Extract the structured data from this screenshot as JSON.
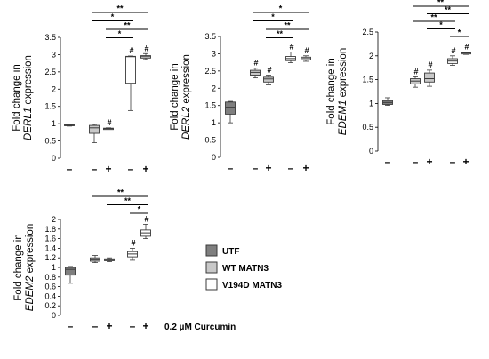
{
  "colors": {
    "utf": "#7f7f7f",
    "wt": "#c8c8c8",
    "v194d": "#ffffff",
    "stroke": "#3a3a3a"
  },
  "legend": [
    {
      "label": "UTF",
      "color": "#7f7f7f"
    },
    {
      "label": "WT MATN3",
      "color": "#c8c8c8"
    },
    {
      "label": "V194D MATN3",
      "color": "#ffffff"
    }
  ],
  "treatment_label": "0.2 µM Curcumin",
  "chart_data": [
    {
      "type": "box",
      "ylabel_prefix": "Fold change in",
      "ylabel_gene": "DERL1",
      "ylabel_suffix": " expression",
      "ylim": [
        0,
        3.5
      ],
      "yticks": [
        "0",
        "0.5",
        "1",
        "1.5",
        "2",
        "2.5",
        "3",
        "3.5"
      ],
      "ytick_values": [
        0,
        0.5,
        1,
        1.5,
        2,
        2.5,
        3,
        3.5
      ],
      "treatment_marks": [
        "–",
        "–",
        "+",
        "–",
        "+"
      ],
      "boxes": [
        {
          "group": "UTF",
          "curcumin": "–",
          "min": 0.93,
          "q1": 0.94,
          "median": 0.96,
          "q3": 0.98,
          "max": 0.99,
          "hash": ""
        },
        {
          "group": "WT MATN3",
          "curcumin": "–",
          "min": 0.45,
          "q1": 0.72,
          "median": 0.88,
          "q3": 0.95,
          "max": 0.98,
          "hash": ""
        },
        {
          "group": "WT MATN3",
          "curcumin": "+",
          "min": 0.84,
          "q1": 0.85,
          "median": 0.86,
          "q3": 0.87,
          "max": 0.88,
          "hash": "#"
        },
        {
          "group": "V194D MATN3",
          "curcumin": "–",
          "min": 1.38,
          "q1": 2.17,
          "median": 2.94,
          "q3": 2.95,
          "max": 2.96,
          "hash": "#"
        },
        {
          "group": "V194D MATN3",
          "curcumin": "+",
          "min": 2.86,
          "q1": 2.9,
          "median": 2.94,
          "q3": 2.97,
          "max": 3.03,
          "hash": "#"
        }
      ],
      "brackets": [
        {
          "from": 1,
          "to": 4,
          "label": "**"
        },
        {
          "from": 1,
          "to": 3,
          "label": "*"
        },
        {
          "from": 2,
          "to": 4,
          "label": "**"
        },
        {
          "from": 2,
          "to": 3,
          "label": "*"
        }
      ]
    },
    {
      "type": "box",
      "ylabel_prefix": "Fold change in",
      "ylabel_gene": "DERL2",
      "ylabel_suffix": " expression",
      "ylim": [
        0,
        3.5
      ],
      "yticks": [
        "0",
        "0.5",
        "1",
        "1.5",
        "2",
        "2.5",
        "3",
        "3.5"
      ],
      "ytick_values": [
        0,
        0.5,
        1,
        1.5,
        2,
        2.5,
        3,
        3.5
      ],
      "treatment_marks": [
        "–",
        "–",
        "+",
        "–",
        "+"
      ],
      "boxes": [
        {
          "group": "UTF",
          "curcumin": "–",
          "min": 1.0,
          "q1": 1.25,
          "median": 1.45,
          "q3": 1.6,
          "max": 1.62,
          "hash": ""
        },
        {
          "group": "WT MATN3",
          "curcumin": "–",
          "min": 2.3,
          "q1": 2.38,
          "median": 2.46,
          "q3": 2.52,
          "max": 2.58,
          "hash": "#"
        },
        {
          "group": "WT MATN3",
          "curcumin": "+",
          "min": 2.1,
          "q1": 2.18,
          "median": 2.27,
          "q3": 2.32,
          "max": 2.38,
          "hash": "#"
        },
        {
          "group": "V194D MATN3",
          "curcumin": "–",
          "min": 2.74,
          "q1": 2.8,
          "median": 2.86,
          "q3": 2.92,
          "max": 3.05,
          "hash": "#"
        },
        {
          "group": "V194D MATN3",
          "curcumin": "+",
          "min": 2.78,
          "q1": 2.82,
          "median": 2.86,
          "q3": 2.9,
          "max": 2.94,
          "hash": "#"
        }
      ],
      "brackets": [
        {
          "from": 1,
          "to": 4,
          "label": "*"
        },
        {
          "from": 1,
          "to": 3,
          "label": "*"
        },
        {
          "from": 2,
          "to": 4,
          "label": "**"
        },
        {
          "from": 2,
          "to": 3,
          "label": "**"
        }
      ]
    },
    {
      "type": "box",
      "ylabel_prefix": "Fold change in",
      "ylabel_gene": "EDEM1",
      "ylabel_suffix": " expression",
      "ylim": [
        0,
        2.5
      ],
      "yticks": [
        "0",
        "0.5",
        "1",
        "1.5",
        "2",
        "2.5"
      ],
      "ytick_values": [
        0,
        0.5,
        1,
        1.5,
        2,
        2.5
      ],
      "treatment_marks": [
        "–",
        "–",
        "+",
        "–",
        "+"
      ],
      "boxes": [
        {
          "group": "UTF",
          "curcumin": "–",
          "min": 0.96,
          "q1": 0.98,
          "median": 1.02,
          "q3": 1.06,
          "max": 1.12,
          "hash": ""
        },
        {
          "group": "WT MATN3",
          "curcumin": "–",
          "min": 1.34,
          "q1": 1.41,
          "median": 1.47,
          "q3": 1.52,
          "max": 1.56,
          "hash": "#"
        },
        {
          "group": "WT MATN3",
          "curcumin": "+",
          "min": 1.36,
          "q1": 1.45,
          "median": 1.52,
          "q3": 1.64,
          "max": 1.7,
          "hash": "#"
        },
        {
          "group": "V194D MATN3",
          "curcumin": "–",
          "min": 1.8,
          "q1": 1.84,
          "median": 1.89,
          "q3": 1.94,
          "max": 2.0,
          "hash": "#"
        },
        {
          "group": "V194D MATN3",
          "curcumin": "+",
          "min": 2.03,
          "q1": 2.04,
          "median": 2.06,
          "q3": 2.07,
          "max": 2.08,
          "hash": "#"
        }
      ],
      "brackets": [
        {
          "from": 1,
          "to": 4,
          "label": "**"
        },
        {
          "from": 2,
          "to": 4,
          "label": "**"
        },
        {
          "from": 1,
          "to": 3,
          "label": "**"
        },
        {
          "from": 2,
          "to": 3,
          "label": "*"
        },
        {
          "from": 3,
          "to": 4,
          "label": "*"
        }
      ]
    },
    {
      "type": "box",
      "ylabel_prefix": "Fold change in",
      "ylabel_gene": "EDEM2",
      "ylabel_suffix": " expression",
      "ylim": [
        0,
        2
      ],
      "yticks": [
        "0",
        "0.2",
        "0.4",
        "0.6",
        "0.8",
        "1",
        "1.2",
        "1.4",
        "1.6",
        "1.8",
        "2"
      ],
      "ytick_values": [
        0,
        0.2,
        0.4,
        0.6,
        0.8,
        1,
        1.2,
        1.4,
        1.6,
        1.8,
        2
      ],
      "treatment_marks": [
        "–",
        "–",
        "+",
        "–",
        "+"
      ],
      "boxes": [
        {
          "group": "UTF",
          "curcumin": "–",
          "min": 0.67,
          "q1": 0.84,
          "median": 0.96,
          "q3": 1.0,
          "max": 1.02,
          "hash": ""
        },
        {
          "group": "WT MATN3",
          "curcumin": "–",
          "min": 1.1,
          "q1": 1.13,
          "median": 1.16,
          "q3": 1.2,
          "max": 1.25,
          "hash": ""
        },
        {
          "group": "WT MATN3",
          "curcumin": "+",
          "min": 1.12,
          "q1": 1.14,
          "median": 1.16,
          "q3": 1.18,
          "max": 1.2,
          "hash": ""
        },
        {
          "group": "V194D MATN3",
          "curcumin": "–",
          "min": 1.15,
          "q1": 1.22,
          "median": 1.28,
          "q3": 1.33,
          "max": 1.4,
          "hash": "#"
        },
        {
          "group": "V194D MATN3",
          "curcumin": "+",
          "min": 1.6,
          "q1": 1.65,
          "median": 1.72,
          "q3": 1.78,
          "max": 1.9,
          "hash": "#"
        }
      ],
      "brackets": [
        {
          "from": 1,
          "to": 4,
          "label": "**"
        },
        {
          "from": 2,
          "to": 4,
          "label": "**"
        },
        {
          "from": 3,
          "to": 4,
          "label": "*"
        }
      ]
    }
  ]
}
